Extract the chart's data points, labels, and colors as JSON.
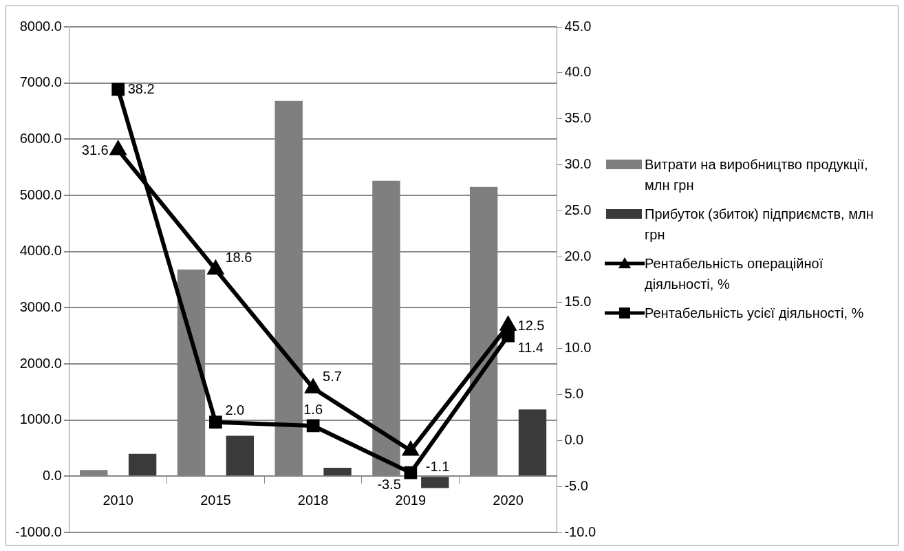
{
  "chart_data": {
    "type": "bar",
    "categories": [
      "2010",
      "2015",
      "2018",
      "2019",
      "2020"
    ],
    "series": [
      {
        "name": "Витрати на виробництво продукції, млн грн",
        "color": "#7f7f7f",
        "values": [
          110,
          3680,
          6680,
          5260,
          5150
        ]
      },
      {
        "name": "Прибуток (збиток) підприємств, млн грн",
        "color": "#3a3a3a",
        "values": [
          400,
          720,
          150,
          -210,
          1190
        ]
      },
      {
        "name": "Рентабельність операційної діяльності, %",
        "type": "line",
        "axis": "y2",
        "color": "#000000",
        "marker": "triangle",
        "values": [
          31.6,
          18.6,
          5.7,
          -1.1,
          12.5
        ],
        "value_labels": [
          "31.6",
          "18.6",
          "5.7",
          "-1.1",
          "12.5"
        ]
      },
      {
        "name": "Рентабельність усієї діяльності, %",
        "type": "line",
        "axis": "y2",
        "color": "#000000",
        "marker": "square",
        "values": [
          38.2,
          2.0,
          1.6,
          -3.5,
          11.4
        ],
        "value_labels": [
          "38.2",
          "2.0",
          "1.6",
          "-3.5",
          "11.4"
        ]
      }
    ],
    "ylim": [
      -1000,
      8000
    ],
    "yticks": [
      {
        "value": -1000,
        "label": "-1000.0"
      },
      {
        "value": 0,
        "label": "0.0"
      },
      {
        "value": 1000,
        "label": "1000.0"
      },
      {
        "value": 2000,
        "label": "2000.0"
      },
      {
        "value": 3000,
        "label": "3000.0"
      },
      {
        "value": 4000,
        "label": "4000.0"
      },
      {
        "value": 5000,
        "label": "5000.0"
      },
      {
        "value": 6000,
        "label": "6000.0"
      },
      {
        "value": 7000,
        "label": "7000.0"
      },
      {
        "value": 8000,
        "label": "8000.0"
      }
    ],
    "y2lim": [
      -10,
      45
    ],
    "y2ticks": [
      {
        "value": -10,
        "label": "-10.0"
      },
      {
        "value": -5,
        "label": "-5.0"
      },
      {
        "value": 0,
        "label": "0.0"
      },
      {
        "value": 5,
        "label": "5.0"
      },
      {
        "value": 10,
        "label": "10.0"
      },
      {
        "value": 15,
        "label": "15.0"
      },
      {
        "value": 20,
        "label": "20.0"
      },
      {
        "value": 25,
        "label": "25.0"
      },
      {
        "value": 30,
        "label": "30.0"
      },
      {
        "value": 35,
        "label": "35.0"
      },
      {
        "value": 40,
        "label": "40.0"
      },
      {
        "value": 45,
        "label": "45.0"
      }
    ],
    "grid": "y",
    "legend": "right"
  }
}
